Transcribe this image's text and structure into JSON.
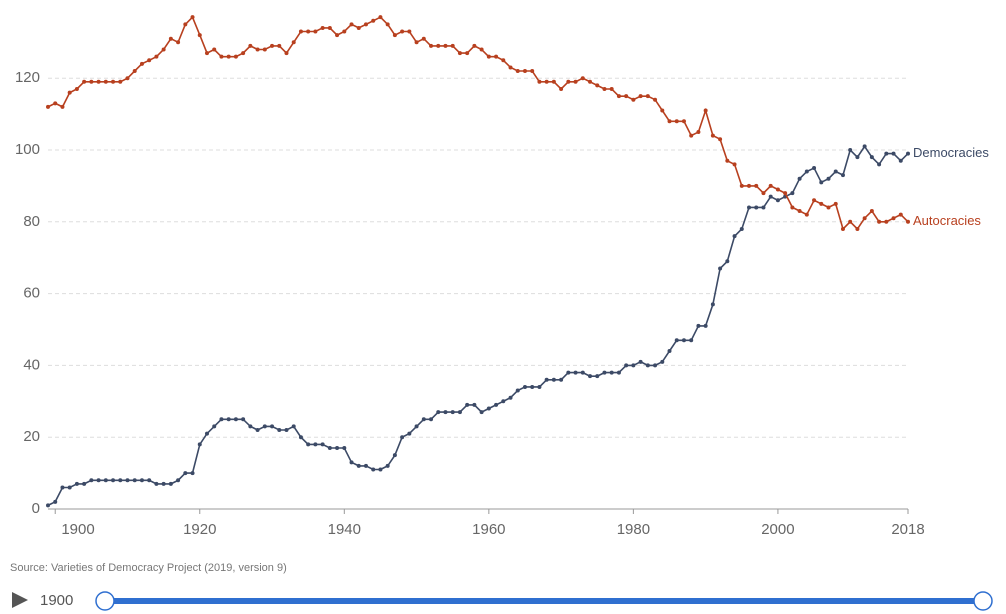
{
  "chart_data": {
    "type": "line",
    "x": [
      1899,
      1900,
      1901,
      1902,
      1903,
      1904,
      1905,
      1906,
      1907,
      1908,
      1909,
      1910,
      1911,
      1912,
      1913,
      1914,
      1915,
      1916,
      1917,
      1918,
      1919,
      1920,
      1921,
      1922,
      1923,
      1924,
      1925,
      1926,
      1927,
      1928,
      1929,
      1930,
      1931,
      1932,
      1933,
      1934,
      1935,
      1936,
      1937,
      1938,
      1939,
      1940,
      1941,
      1942,
      1943,
      1944,
      1945,
      1946,
      1947,
      1948,
      1949,
      1950,
      1951,
      1952,
      1953,
      1954,
      1955,
      1956,
      1957,
      1958,
      1959,
      1960,
      1961,
      1962,
      1963,
      1964,
      1965,
      1966,
      1967,
      1968,
      1969,
      1970,
      1971,
      1972,
      1973,
      1974,
      1975,
      1976,
      1977,
      1978,
      1979,
      1980,
      1981,
      1982,
      1983,
      1984,
      1985,
      1986,
      1987,
      1988,
      1989,
      1990,
      1991,
      1992,
      1993,
      1994,
      1995,
      1996,
      1997,
      1998,
      1999,
      2000,
      2001,
      2002,
      2003,
      2004,
      2005,
      2006,
      2007,
      2008,
      2009,
      2010,
      2011,
      2012,
      2013,
      2014,
      2015,
      2016,
      2017,
      2018
    ],
    "series": [
      {
        "name": "Democracies",
        "color": "#3c4a66",
        "values": [
          1,
          2,
          6,
          6,
          7,
          7,
          8,
          8,
          8,
          8,
          8,
          8,
          8,
          8,
          8,
          7,
          7,
          7,
          8,
          10,
          10,
          18,
          21,
          23,
          25,
          25,
          25,
          25,
          23,
          22,
          23,
          23,
          22,
          22,
          23,
          20,
          18,
          18,
          18,
          17,
          17,
          17,
          13,
          12,
          12,
          11,
          11,
          12,
          15,
          20,
          21,
          23,
          25,
          25,
          27,
          27,
          27,
          27,
          29,
          29,
          27,
          28,
          29,
          30,
          31,
          33,
          34,
          34,
          34,
          36,
          36,
          36,
          38,
          38,
          38,
          37,
          37,
          38,
          38,
          38,
          40,
          40,
          41,
          40,
          40,
          41,
          44,
          47,
          47,
          47,
          51,
          51,
          57,
          67,
          69,
          76,
          78,
          84,
          84,
          84,
          87,
          86,
          87,
          88,
          92,
          94,
          95,
          91,
          92,
          94,
          93,
          100,
          98,
          101,
          98,
          96,
          99,
          99,
          97,
          99
        ]
      },
      {
        "name": "Autocracies",
        "color": "#b8401f",
        "values": [
          112,
          113,
          112,
          116,
          117,
          119,
          119,
          119,
          119,
          119,
          119,
          120,
          122,
          124,
          125,
          126,
          128,
          131,
          130,
          135,
          137,
          132,
          127,
          128,
          126,
          126,
          126,
          127,
          129,
          128,
          128,
          129,
          129,
          127,
          130,
          133,
          133,
          133,
          134,
          134,
          132,
          133,
          135,
          134,
          135,
          136,
          137,
          135,
          132,
          133,
          133,
          130,
          131,
          129,
          129,
          129,
          129,
          127,
          127,
          129,
          128,
          126,
          126,
          125,
          123,
          122,
          122,
          122,
          119,
          119,
          119,
          117,
          119,
          119,
          120,
          119,
          118,
          117,
          117,
          115,
          115,
          114,
          115,
          115,
          114,
          111,
          108,
          108,
          108,
          104,
          105,
          111,
          104,
          103,
          97,
          96,
          90,
          90,
          90,
          88,
          90,
          89,
          88,
          84,
          83,
          82,
          86,
          85,
          84,
          85,
          78,
          80,
          78,
          81,
          83,
          80,
          80,
          81,
          82,
          80
        ]
      }
    ],
    "xlim": [
      1899,
      2018
    ],
    "xticks": [
      1900,
      1920,
      1940,
      1960,
      1980,
      2000,
      2018
    ],
    "ylim": [
      0,
      139
    ],
    "yticks": [
      0,
      20,
      40,
      60,
      80,
      100,
      120
    ],
    "grid": true,
    "source": "Source: Varieties of Democracy Project (2019, version 9)",
    "timeline_start": "1900"
  }
}
